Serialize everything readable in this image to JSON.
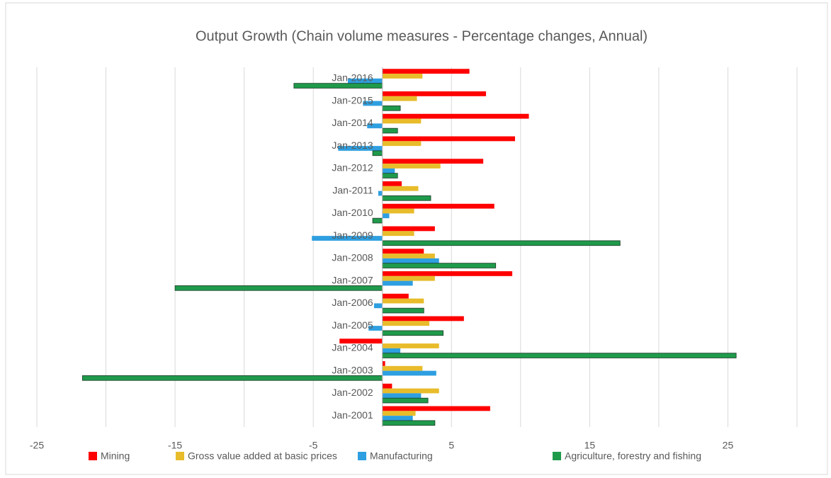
{
  "chart_data": {
    "type": "hbar",
    "title": "Output Growth (Chain volume measures - Percentage changes, Annual)",
    "categories": [
      "Jan-2001",
      "Jan-2002",
      "Jan-2003",
      "Jan-2004",
      "Jan-2005",
      "Jan-2006",
      "Jan-2007",
      "Jan-2008",
      "Jan-2009",
      "Jan-2010",
      "Jan-2011",
      "Jan-2012",
      "Jan-2013",
      "Jan-2014",
      "Jan-2015",
      "Jan-2016"
    ],
    "series": [
      {
        "name": "Mining",
        "color": "#ff0000",
        "values": [
          7.8,
          0.7,
          0.2,
          -3.1,
          5.9,
          1.9,
          9.4,
          3.0,
          3.8,
          8.1,
          1.4,
          7.3,
          9.6,
          10.6,
          7.5,
          6.3
        ]
      },
      {
        "name": "Gross value added at basic prices",
        "color": "#e8bc2a",
        "values": [
          2.4,
          4.1,
          2.9,
          4.1,
          3.4,
          3.0,
          3.8,
          3.8,
          2.3,
          2.3,
          2.6,
          4.2,
          2.8,
          2.8,
          2.5,
          2.9
        ]
      },
      {
        "name": "Manufacturing",
        "color": "#2e9fe0",
        "values": [
          2.2,
          2.8,
          3.9,
          1.3,
          -1.0,
          -0.6,
          2.2,
          4.1,
          -5.1,
          0.5,
          -0.3,
          0.9,
          -3.2,
          -1.1,
          -1.4,
          -2.5
        ]
      },
      {
        "name": "Agriculture, forestry and fishing",
        "color": "#1f9a4b",
        "values": [
          3.8,
          3.3,
          -21.7,
          25.6,
          4.4,
          3.0,
          -15.0,
          8.2,
          17.2,
          -0.7,
          3.5,
          1.1,
          -0.7,
          1.1,
          1.3,
          -6.4
        ]
      }
    ],
    "xlim": [
      -25,
      30
    ],
    "xticks": [
      -25,
      -15,
      -5,
      5,
      15,
      25
    ],
    "minor_gridlines": [
      -20,
      -10,
      0,
      10,
      20,
      30
    ],
    "grid": true,
    "legend": "bottom"
  }
}
